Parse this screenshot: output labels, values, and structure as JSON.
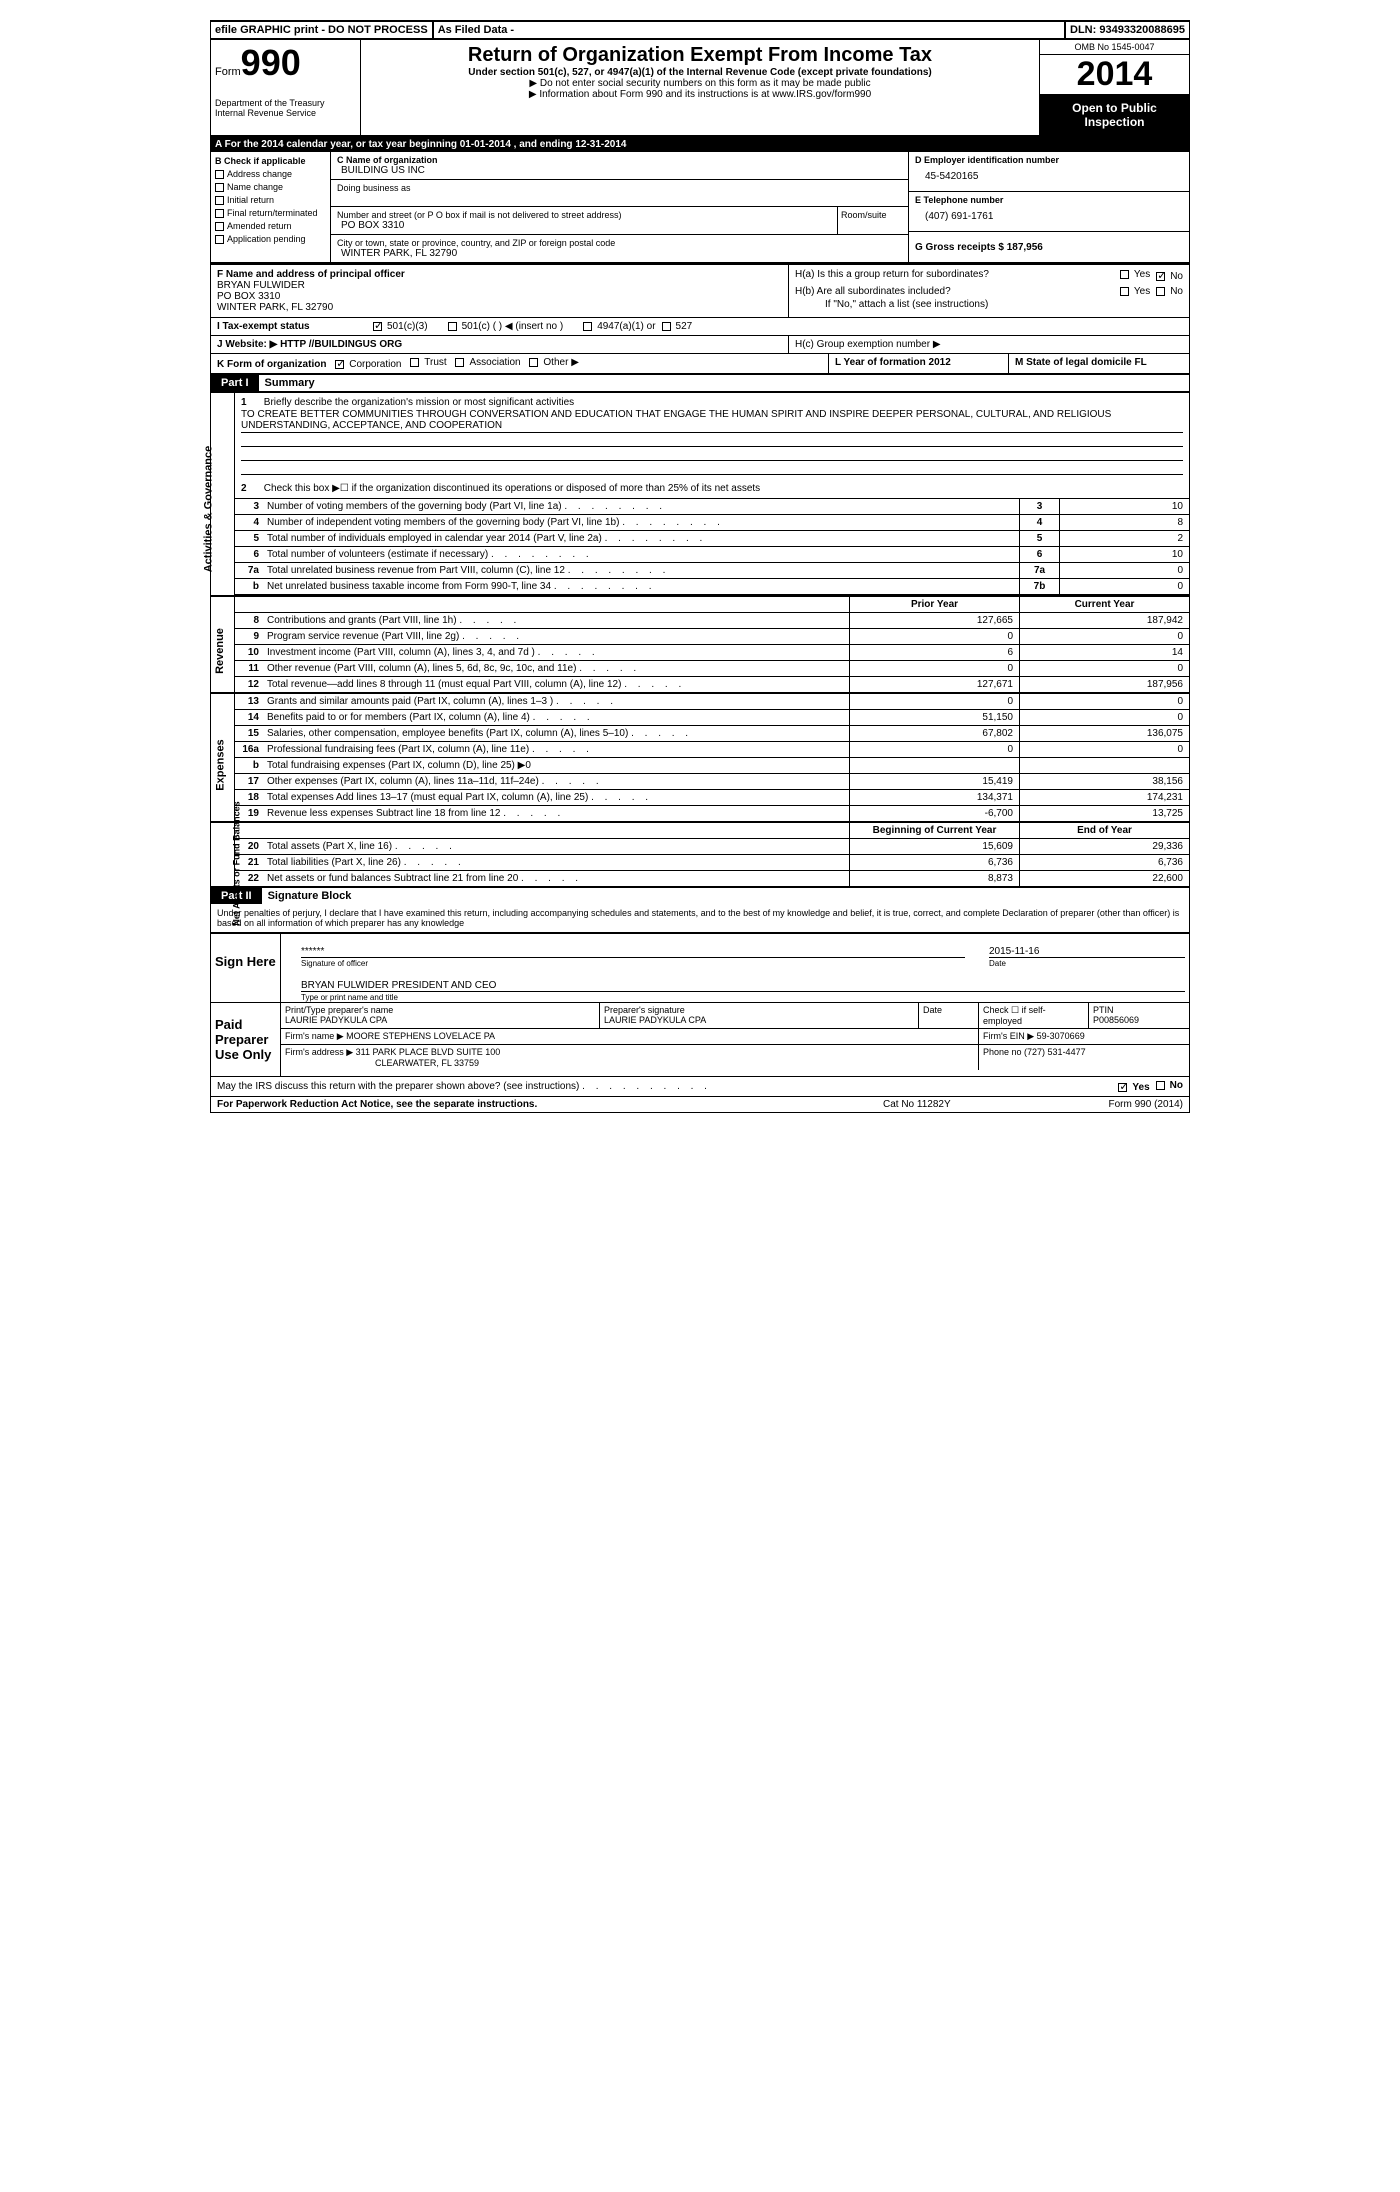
{
  "topbar": {
    "efile": "efile GRAPHIC print - DO NOT PROCESS",
    "asfiled": "As Filed Data -",
    "dln": "DLN: 93493320088695"
  },
  "header": {
    "form_label": "Form",
    "form_num": "990",
    "dept": "Department of the Treasury\nInternal Revenue Service",
    "title": "Return of Organization Exempt From Income Tax",
    "sub1": "Under section 501(c), 527, or 4947(a)(1) of the Internal Revenue Code (except private foundations)",
    "sub2": "▶ Do not enter social security numbers on this form as it may be made public",
    "sub3": "▶ Information about Form 990 and its instructions is at www.IRS.gov/form990",
    "omb": "OMB No 1545-0047",
    "year": "2014",
    "inspection": "Open to Public Inspection"
  },
  "rowA": "A For the 2014 calendar year, or tax year beginning 01-01-2014    , and ending 12-31-2014",
  "colB": {
    "label": "B Check if applicable",
    "items": [
      "Address change",
      "Name change",
      "Initial return",
      "Final return/terminated",
      "Amended return",
      "Application pending"
    ]
  },
  "colC": {
    "name_label": "C Name of organization",
    "name": "BUILDING US INC",
    "dba_label": "Doing business as",
    "dba": "",
    "addr_label": "Number and street (or P O  box if mail is not delivered to street address)",
    "room_label": "Room/suite",
    "addr": "PO BOX 3310",
    "city_label": "City or town, state or province, country, and ZIP or foreign postal code",
    "city": "WINTER PARK, FL  32790"
  },
  "colD": {
    "ein_label": "D Employer identification number",
    "ein": "45-5420165",
    "phone_label": "E Telephone number",
    "phone": "(407) 691-1761",
    "gross_label": "G Gross receipts $ 187,956"
  },
  "rowF": {
    "label": "F  Name and address of principal officer",
    "l1": "BRYAN FULWIDER",
    "l2": "PO BOX 3310",
    "l3": "WINTER PARK, FL  32790"
  },
  "rowH": {
    "ha": "H(a)  Is this a group return for subordinates?",
    "hb": "H(b)  Are all subordinates included?",
    "hb2": "If \"No,\" attach a list  (see instructions)",
    "hc": "H(c)  Group exemption number ▶"
  },
  "rowI": "I  Tax-exempt status",
  "rowI_opts": [
    "501(c)(3)",
    "501(c) (  ) ◀ (insert no )",
    "4947(a)(1) or",
    "527"
  ],
  "rowJ": "J  Website: ▶  HTTP //BUILDINGUS ORG",
  "rowK": "K Form of organization",
  "rowK_opts": [
    "Corporation",
    "Trust",
    "Association",
    "Other ▶"
  ],
  "rowL": "L Year of formation  2012",
  "rowM": "M State of legal domicile  FL",
  "partI": {
    "label": "Part I",
    "title": "Summary"
  },
  "mission": {
    "num": "1",
    "label": "Briefly describe the organization's mission or most significant activities",
    "text": "TO CREATE BETTER COMMUNITIES THROUGH CONVERSATION AND EDUCATION THAT ENGAGE THE HUMAN SPIRIT AND INSPIRE DEEPER PERSONAL, CULTURAL, AND RELIGIOUS UNDERSTANDING, ACCEPTANCE, AND COOPERATION"
  },
  "line2": {
    "num": "2",
    "text": "Check this box ▶☐ if the organization discontinued its operations or disposed of more than 25% of its net assets"
  },
  "gov_lines": [
    {
      "num": "3",
      "desc": "Number of voting members of the governing body (Part VI, line 1a)",
      "cell": "3",
      "val": "10"
    },
    {
      "num": "4",
      "desc": "Number of independent voting members of the governing body (Part VI, line 1b)",
      "cell": "4",
      "val": "8"
    },
    {
      "num": "5",
      "desc": "Total number of individuals employed in calendar year 2014 (Part V, line 2a)",
      "cell": "5",
      "val": "2"
    },
    {
      "num": "6",
      "desc": "Total number of volunteers (estimate if necessary)",
      "cell": "6",
      "val": "10"
    },
    {
      "num": "7a",
      "desc": "Total unrelated business revenue from Part VIII, column (C), line 12",
      "cell": "7a",
      "val": "0"
    },
    {
      "num": "b",
      "desc": "Net unrelated business taxable income from Form 990-T, line 34",
      "cell": "7b",
      "val": "0"
    }
  ],
  "twocol_header": {
    "prior": "Prior Year",
    "current": "Current Year"
  },
  "revenue_lines": [
    {
      "num": "8",
      "desc": "Contributions and grants (Part VIII, line 1h)",
      "p": "127,665",
      "c": "187,942"
    },
    {
      "num": "9",
      "desc": "Program service revenue (Part VIII, line 2g)",
      "p": "0",
      "c": "0"
    },
    {
      "num": "10",
      "desc": "Investment income (Part VIII, column (A), lines 3, 4, and 7d )",
      "p": "6",
      "c": "14"
    },
    {
      "num": "11",
      "desc": "Other revenue (Part VIII, column (A), lines 5, 6d, 8c, 9c, 10c, and 11e)",
      "p": "0",
      "c": "0"
    },
    {
      "num": "12",
      "desc": "Total revenue—add lines 8 through 11 (must equal Part VIII, column (A), line 12)",
      "p": "127,671",
      "c": "187,956"
    }
  ],
  "expense_lines": [
    {
      "num": "13",
      "desc": "Grants and similar amounts paid (Part IX, column (A), lines 1–3 )",
      "p": "0",
      "c": "0"
    },
    {
      "num": "14",
      "desc": "Benefits paid to or for members (Part IX, column (A), line 4)",
      "p": "51,150",
      "c": "0"
    },
    {
      "num": "15",
      "desc": "Salaries, other compensation, employee benefits (Part IX, column (A), lines 5–10)",
      "p": "67,802",
      "c": "136,075"
    },
    {
      "num": "16a",
      "desc": "Professional fundraising fees (Part IX, column (A), line 11e)",
      "p": "0",
      "c": "0"
    },
    {
      "num": "b",
      "desc": "Total fundraising expenses (Part IX, column (D), line 25) ▶0",
      "p": "",
      "c": ""
    },
    {
      "num": "17",
      "desc": "Other expenses (Part IX, column (A), lines 11a–11d, 11f–24e)",
      "p": "15,419",
      "c": "38,156"
    },
    {
      "num": "18",
      "desc": "Total expenses  Add lines 13–17 (must equal Part IX, column (A), line 25)",
      "p": "134,371",
      "c": "174,231"
    },
    {
      "num": "19",
      "desc": "Revenue less expenses  Subtract line 18 from line 12",
      "p": "-6,700",
      "c": "13,725"
    }
  ],
  "balance_header": {
    "b": "Beginning of Current Year",
    "e": "End of Year"
  },
  "balance_lines": [
    {
      "num": "20",
      "desc": "Total assets (Part X, line 16)",
      "p": "15,609",
      "c": "29,336"
    },
    {
      "num": "21",
      "desc": "Total liabilities (Part X, line 26)",
      "p": "6,736",
      "c": "6,736"
    },
    {
      "num": "22",
      "desc": "Net assets or fund balances  Subtract line 21 from line 20",
      "p": "8,873",
      "c": "22,600"
    }
  ],
  "partII": {
    "label": "Part II",
    "title": "Signature Block"
  },
  "sig": {
    "perjury": "Under penalties of perjury, I declare that I have examined this return, including accompanying schedules and statements, and to the best of my knowledge and belief, it is true, correct, and complete  Declaration of preparer (other than officer) is based on all information of which preparer has any knowledge",
    "sign_here": "Sign Here",
    "sig_officer": "******",
    "sig_officer_label": "Signature of officer",
    "sig_date": "2015-11-16",
    "sig_date_label": "Date",
    "name_title": "BRYAN FULWIDER PRESIDENT AND CEO",
    "name_title_label": "Type or print name and title",
    "paid": "Paid Preparer Use Only",
    "prep_name_label": "Print/Type preparer's name",
    "prep_name": "LAURIE PADYKULA CPA",
    "prep_sig_label": "Preparer's signature",
    "prep_sig": "LAURIE PADYKULA CPA",
    "prep_date_label": "Date",
    "prep_check": "Check ☐ if self-employed",
    "ptin_label": "PTIN",
    "ptin": "P00856069",
    "firm_name_label": "Firm's name    ▶",
    "firm_name": "MOORE STEPHENS LOVELACE PA",
    "firm_ein_label": "Firm's EIN ▶",
    "firm_ein": "59-3070669",
    "firm_addr_label": "Firm's address ▶",
    "firm_addr": "311 PARK PLACE BLVD SUITE 100",
    "firm_city": "CLEARWATER, FL  33759",
    "phone_label": "Phone no  (727) 531-4477",
    "discuss": "May the IRS discuss this return with the preparer shown above? (see instructions)"
  },
  "footer": {
    "left": "For Paperwork Reduction Act Notice, see the separate instructions.",
    "mid": "Cat No  11282Y",
    "right": "Form 990 (2014)"
  },
  "labels": {
    "yes": "Yes",
    "no": "No"
  },
  "sidebars": {
    "gov": "Activities & Governance",
    "rev": "Revenue",
    "exp": "Expenses",
    "bal": "Net Assets or Fund Balances"
  }
}
